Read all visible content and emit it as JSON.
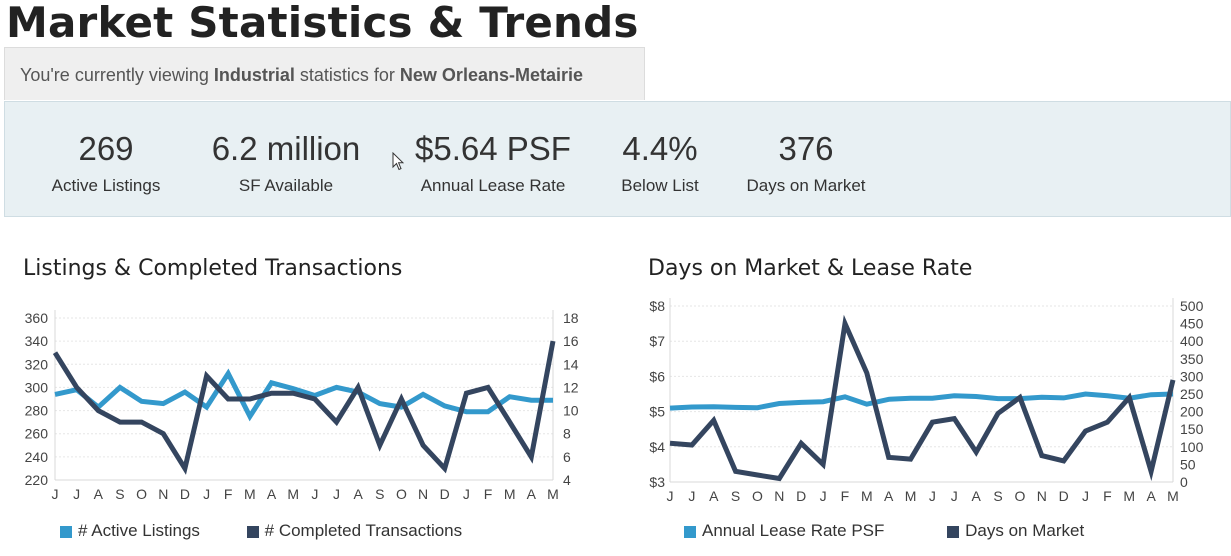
{
  "page_title": "Market Statistics & Trends",
  "context": {
    "prefix": "You're currently viewing ",
    "property_type": "Industrial",
    "middle": " statistics for ",
    "market": "New Orleans-Metairie"
  },
  "stats": [
    {
      "value": "269",
      "label": "Active Listings"
    },
    {
      "value": "6.2 million",
      "label": "SF Available"
    },
    {
      "value": "$5.64 PSF",
      "label": "Annual Lease Rate"
    },
    {
      "value": "4.4%",
      "label": "Below List"
    },
    {
      "value": "376",
      "label": "Days on Market"
    }
  ],
  "colors": {
    "light_series": "#3399cc",
    "dark_series": "#34455f",
    "grid": "#e6e6e6"
  },
  "chart_data": [
    {
      "type": "line",
      "title": "Listings & Completed Transactions",
      "categories": [
        "J",
        "J",
        "A",
        "S",
        "O",
        "N",
        "D",
        "J",
        "F",
        "M",
        "A",
        "M",
        "J",
        "J",
        "A",
        "S",
        "O",
        "N",
        "D",
        "J",
        "F",
        "M",
        "A",
        "M"
      ],
      "left_ticks": [
        "360",
        "340",
        "320",
        "300",
        "280",
        "260",
        "240",
        "220"
      ],
      "right_ticks": [
        "18",
        "16",
        "14",
        "12",
        "10",
        "8",
        "6",
        "4"
      ],
      "ylim_left": [
        220,
        360
      ],
      "ylim_right": [
        4,
        18
      ],
      "series": [
        {
          "name": "# Active Listings",
          "axis": "left",
          "color": "#3399cc",
          "values": [
            294,
            298,
            283,
            300,
            288,
            286,
            296,
            283,
            312,
            275,
            304,
            299,
            293,
            300,
            296,
            286,
            283,
            294,
            284,
            279,
            279,
            292,
            289,
            289
          ]
        },
        {
          "name": "# Completed Transactions",
          "axis": "right",
          "color": "#34455f",
          "values": [
            15,
            12,
            10,
            9,
            9,
            8,
            5,
            13,
            11,
            11,
            11.5,
            11.5,
            11,
            9,
            12,
            7,
            11,
            7,
            5,
            11.5,
            12,
            9,
            6,
            16
          ]
        }
      ]
    },
    {
      "type": "line",
      "title": "Days on Market & Lease Rate",
      "categories": [
        "J",
        "J",
        "A",
        "S",
        "O",
        "N",
        "D",
        "J",
        "F",
        "M",
        "A",
        "M",
        "J",
        "J",
        "A",
        "S",
        "O",
        "N",
        "D",
        "J",
        "F",
        "M",
        "A",
        "M"
      ],
      "left_ticks": [
        "$8",
        "$7",
        "$6",
        "$5",
        "$4",
        "$3"
      ],
      "right_ticks": [
        "500",
        "450",
        "400",
        "350",
        "300",
        "250",
        "200",
        "150",
        "100",
        "50",
        "0"
      ],
      "ylim_left": [
        3,
        8
      ],
      "ylim_right": [
        0,
        500
      ],
      "series": [
        {
          "name": "Annual Lease Rate PSF",
          "axis": "left",
          "color": "#3399cc",
          "values": [
            5.1,
            5.13,
            5.14,
            5.12,
            5.11,
            5.23,
            5.26,
            5.28,
            5.42,
            5.21,
            5.35,
            5.38,
            5.38,
            5.45,
            5.43,
            5.37,
            5.37,
            5.41,
            5.39,
            5.5,
            5.45,
            5.38,
            5.48,
            5.5
          ]
        },
        {
          "name": "Days on Market",
          "axis": "right",
          "color": "#34455f",
          "values": [
            110,
            105,
            175,
            30,
            20,
            10,
            110,
            50,
            450,
            310,
            70,
            65,
            170,
            180,
            85,
            195,
            240,
            75,
            60,
            145,
            170,
            240,
            30,
            290
          ]
        }
      ]
    }
  ]
}
